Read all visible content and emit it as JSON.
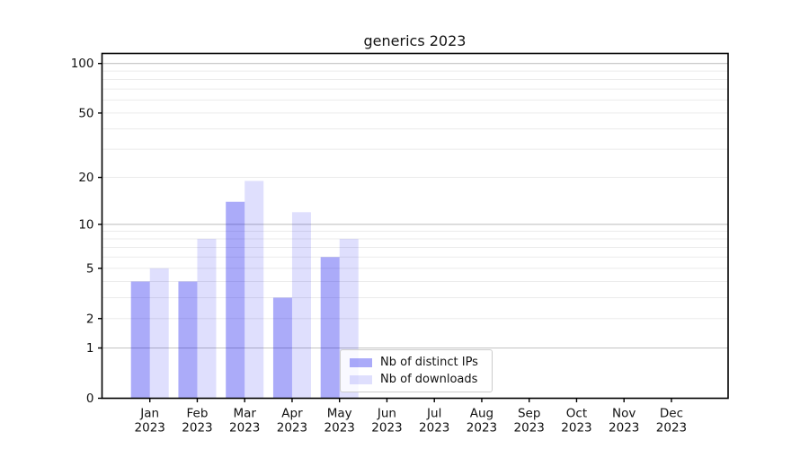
{
  "title": "generics 2023",
  "chart_data": {
    "type": "bar",
    "title": "generics 2023",
    "categories": [
      "Jan",
      "Feb",
      "Mar",
      "Apr",
      "May",
      "Jun",
      "Jul",
      "Aug",
      "Sep",
      "Oct",
      "Nov",
      "Dec"
    ],
    "x_year": "2023",
    "series": [
      {
        "name": "Nb of distinct IPs",
        "values": [
          4,
          4,
          14,
          3,
          6,
          0,
          0,
          0,
          0,
          0,
          0,
          0
        ],
        "color": "rgba(8,8,238,0.34)"
      },
      {
        "name": "Nb of downloads",
        "values": [
          5,
          8,
          19,
          12,
          8,
          0,
          0,
          0,
          0,
          0,
          0,
          0
        ],
        "color": "rgba(8,8,238,0.13)"
      }
    ],
    "yscale": "log1p",
    "ylim": [
      0,
      115
    ],
    "y_tick_labels": [
      0,
      1,
      2,
      5,
      10,
      20,
      50,
      100
    ],
    "grid_major_values": [
      1,
      10,
      100
    ],
    "grid_minor_values": [
      2,
      3,
      4,
      5,
      6,
      7,
      8,
      9,
      20,
      30,
      40,
      50,
      60,
      70,
      80,
      90
    ],
    "grid": "on",
    "legend_position": "lower center"
  },
  "legend": {
    "ip_label": "Nb of distinct IPs",
    "dl_label": "Nb of downloads"
  },
  "colors": {
    "bar_ip": "rgba(8,8,238,0.34)",
    "bar_dl": "rgba(8,8,238,0.13)",
    "grid_major": "#c3c3c3",
    "grid_minor": "#ebebeb",
    "spine": "#000000",
    "text": "#111111"
  }
}
